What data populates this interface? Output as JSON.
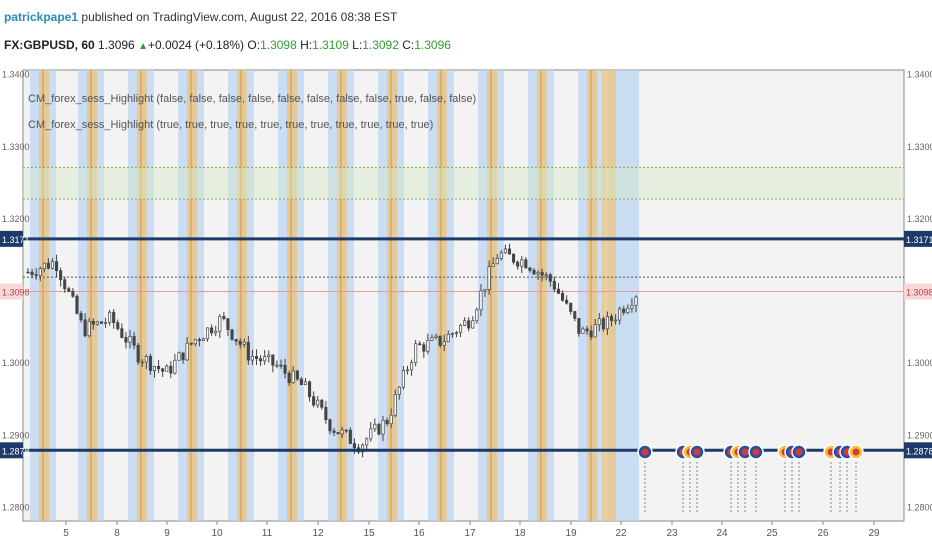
{
  "header": {
    "author": "patrickpape1",
    "publish_line": "published on TradingView.com, August 22, 2016 08:38 EST",
    "symbol": "FX:GBPUSD, 60",
    "last": "1.3096",
    "change": "+0.0024 (+0.18%)",
    "o_label": "O:",
    "o_value": "1.3098",
    "h_label": "H:",
    "h_value": "1.3109",
    "l_label": "L:",
    "l_value": "1.3092",
    "c_label": "C:",
    "c_value": "1.3096"
  },
  "indicators": [
    "CM_forex_sess_Highlight (false, false, false, false, false, false, false, false, true, false, false)",
    "CM_forex_sess_Highlight (true, true, true, true, true, true, true, true, true, true, true)"
  ],
  "price_axis": {
    "ticks": [
      "1.3400",
      "1.3300",
      "1.3200",
      "1.3000",
      "1.2900",
      "1.2800"
    ],
    "tick_values": [
      1.34,
      1.33,
      1.32,
      1.3,
      1.29,
      1.28
    ],
    "range": [
      1.278,
      1.3405
    ],
    "level_high": "1.3171",
    "level_low": "1.2878",
    "current": "1.3098",
    "level_high_value": 1.3171,
    "level_low_value": 1.2878,
    "current_value": 1.3098
  },
  "time_axis": {
    "labels": [
      "5",
      "8",
      "9",
      "10",
      "11",
      "12",
      "15",
      "16",
      "17",
      "18",
      "19",
      "22",
      "23",
      "24",
      "25",
      "26",
      "29"
    ]
  },
  "chart_data": {
    "type": "candlestick",
    "symbol": "FX:GBPUSD",
    "interval": "60",
    "x_labels": [
      "5",
      "8",
      "9",
      "10",
      "11",
      "12",
      "15",
      "16",
      "17",
      "18",
      "19",
      "22",
      "23",
      "24",
      "25",
      "26",
      "29"
    ],
    "close_waypoints": [
      {
        "day": "5",
        "close": 1.3125
      },
      {
        "day": "5",
        "close": 1.314
      },
      {
        "day": "8",
        "close": 1.3045
      },
      {
        "day": "8",
        "close": 1.306
      },
      {
        "day": "9",
        "close": 1.301
      },
      {
        "day": "9",
        "close": 1.2985
      },
      {
        "day": "10",
        "close": 1.303
      },
      {
        "day": "10",
        "close": 1.306
      },
      {
        "day": "11",
        "close": 1.301
      },
      {
        "day": "11",
        "close": 1.2995
      },
      {
        "day": "12",
        "close": 1.2965
      },
      {
        "day": "15",
        "close": 1.291
      },
      {
        "day": "16",
        "close": 1.2885
      },
      {
        "day": "16",
        "close": 1.292
      },
      {
        "day": "17",
        "close": 1.302
      },
      {
        "day": "17",
        "close": 1.303
      },
      {
        "day": "18",
        "close": 1.306
      },
      {
        "day": "18",
        "close": 1.315
      },
      {
        "day": "19",
        "close": 1.314
      },
      {
        "day": "19",
        "close": 1.311
      },
      {
        "day": "19",
        "close": 1.304
      },
      {
        "day": "22",
        "close": 1.3055
      },
      {
        "day": "22",
        "close": 1.3096
      }
    ],
    "horizontal_levels": [
      1.3171,
      1.2878
    ],
    "current_price": 1.3098,
    "zone_top": 1.327,
    "zone_bottom": 1.3226,
    "event_icon_colors": [
      "#2a4f9e",
      "#d43b3b",
      "#f3c43a"
    ]
  },
  "colors": {
    "accent": "#1e3a68",
    "blue_band": "#bcd6f2",
    "orange_band": "#e7c588",
    "candle": "#444444",
    "current_line": "#e89a9a",
    "zone": "#d4e8c8"
  }
}
